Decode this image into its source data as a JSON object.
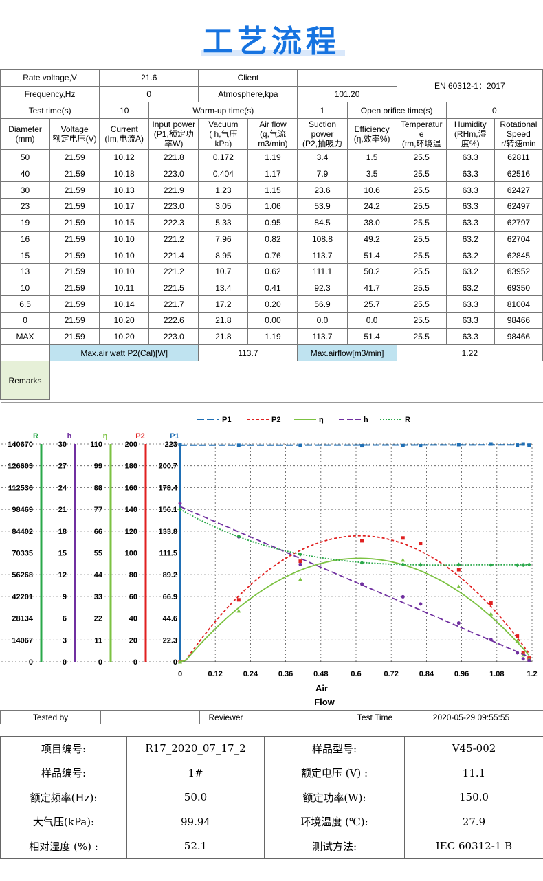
{
  "page_title": "工艺流程",
  "spec": {
    "rate_voltage_label": "Rate voltage,V",
    "rate_voltage": "21.6",
    "client_label": "Client",
    "client": "",
    "frequency_label": "Frequency,Hz",
    "frequency": "0",
    "atmosphere_label": "Atmosphere,kpa",
    "atmosphere": "101.20",
    "standard": "EN 60312-1：2017",
    "test_time_label": "Test time(s)",
    "test_time": "10",
    "warmup_label": "Warm-up time(s)",
    "warmup": "1",
    "open_orifice_label": "Open orifice time(s)",
    "open_orifice": "0",
    "headers": [
      "Diameter\n(mm)",
      "Voltage\n额定电压(V)",
      "Current\n(Im,电流A)",
      "Input power\n(P1,额定功\n率W)",
      "Vacuum\n( h,气压\nkPa)",
      "Air flow\n(q,气流\nm3/min)",
      "Suction\npower\n(P2,抽吸力",
      "Efficiency\n(η,效率%)",
      "Temperatur\ne\n(tm,环境温",
      "Humidity\n(RHm,湿\n度%)",
      "Rotational\nSpeed\nr/转速min"
    ],
    "rows": [
      [
        "50",
        "21.59",
        "10.12",
        "221.8",
        "0.172",
        "1.19",
        "3.4",
        "1.5",
        "25.5",
        "63.3",
        "62811"
      ],
      [
        "40",
        "21.59",
        "10.18",
        "223.0",
        "0.404",
        "1.17",
        "7.9",
        "3.5",
        "25.5",
        "63.3",
        "62516"
      ],
      [
        "30",
        "21.59",
        "10.13",
        "221.9",
        "1.23",
        "1.15",
        "23.6",
        "10.6",
        "25.5",
        "63.3",
        "62427"
      ],
      [
        "23",
        "21.59",
        "10.17",
        "223.0",
        "3.05",
        "1.06",
        "53.9",
        "24.2",
        "25.5",
        "63.3",
        "62497"
      ],
      [
        "19",
        "21.59",
        "10.15",
        "222.3",
        "5.33",
        "0.95",
        "84.5",
        "38.0",
        "25.5",
        "63.3",
        "62797"
      ],
      [
        "16",
        "21.59",
        "10.10",
        "221.2",
        "7.96",
        "0.82",
        "108.8",
        "49.2",
        "25.5",
        "63.2",
        "62704"
      ],
      [
        "15",
        "21.59",
        "10.10",
        "221.4",
        "8.95",
        "0.76",
        "113.7",
        "51.4",
        "25.5",
        "63.2",
        "62845"
      ],
      [
        "13",
        "21.59",
        "10.10",
        "221.2",
        "10.7",
        "0.62",
        "111.1",
        "50.2",
        "25.5",
        "63.2",
        "63952"
      ],
      [
        "10",
        "21.59",
        "10.11",
        "221.5",
        "13.4",
        "0.41",
        "92.3",
        "41.7",
        "25.5",
        "63.2",
        "69350"
      ],
      [
        "6.5",
        "21.59",
        "10.14",
        "221.7",
        "17.2",
        "0.20",
        "56.9",
        "25.7",
        "25.5",
        "63.3",
        "81004"
      ],
      [
        "0",
        "21.59",
        "10.20",
        "222.6",
        "21.8",
        "0.00",
        "0.0",
        "0.0",
        "25.5",
        "63.3",
        "98466"
      ],
      [
        "MAX",
        "21.59",
        "10.20",
        "223.0",
        "21.8",
        "1.19",
        "113.7",
        "51.4",
        "25.5",
        "63.3",
        "98466"
      ]
    ],
    "max_air_watt_label": "Max.air watt P2(Cal)[W]",
    "max_air_watt": "113.7",
    "max_airflow_label": "Max.airflow[m3/min]",
    "max_airflow": "1.22",
    "remarks_label": "Remarks"
  },
  "chart_data": {
    "type": "scatter",
    "xlabel_line1": "Air",
    "xlabel_line2": "Flow",
    "x_ticks": [
      "0",
      "0.12",
      "0.24",
      "0.36",
      "0.48",
      "0.6",
      "0.72",
      "0.84",
      "0.96",
      "1.08",
      "1.2"
    ],
    "xlim": [
      0,
      1.2
    ],
    "grid": true,
    "legend_position": "top",
    "colors": {
      "P1": "#1f6fb5",
      "P2": "#e02020",
      "eta": "#7cc242",
      "h": "#7030a0",
      "R": "#2aa84a"
    },
    "legend": [
      "P1",
      "P2",
      "η",
      "h",
      "R"
    ],
    "axes": [
      {
        "name": "R",
        "ticks": [
          "0",
          "14067",
          "28134",
          "42201",
          "56268",
          "70335",
          "84402",
          "98469",
          "112536",
          "126603",
          "140670"
        ],
        "ylim": [
          0,
          140670
        ]
      },
      {
        "name": "h",
        "ticks": [
          "0",
          "3",
          "6",
          "9",
          "12",
          "15",
          "18",
          "21",
          "24",
          "27",
          "30"
        ],
        "ylim": [
          0,
          30
        ]
      },
      {
        "name": "η",
        "ticks": [
          "0",
          "11",
          "22",
          "33",
          "44",
          "55",
          "66",
          "77",
          "88",
          "99",
          "110"
        ],
        "ylim": [
          0,
          110
        ]
      },
      {
        "name": "P2",
        "ticks": [
          "0",
          "20",
          "40",
          "60",
          "80",
          "100",
          "120",
          "140",
          "160",
          "180",
          "200"
        ],
        "ylim": [
          0,
          200
        ]
      },
      {
        "name": "P1",
        "ticks": [
          "0",
          "22.3",
          "44.6",
          "66.9",
          "89.2",
          "111.5",
          "133.8",
          "156.1",
          "178.4",
          "200.7",
          "223"
        ],
        "ylim": [
          0,
          223
        ]
      }
    ],
    "series": [
      {
        "name": "P1",
        "axis": "P1",
        "x": [
          1.19,
          1.17,
          1.15,
          1.06,
          0.95,
          0.82,
          0.76,
          0.62,
          0.41,
          0.2,
          0.0
        ],
        "y": [
          221.8,
          223.0,
          221.9,
          223.0,
          222.3,
          221.2,
          221.4,
          221.2,
          221.5,
          221.7,
          222.6
        ]
      },
      {
        "name": "P2",
        "axis": "P2",
        "x": [
          1.19,
          1.17,
          1.15,
          1.06,
          0.95,
          0.82,
          0.76,
          0.62,
          0.41,
          0.2,
          0.0
        ],
        "y": [
          3.4,
          7.9,
          23.6,
          53.9,
          84.5,
          108.8,
          113.7,
          111.1,
          92.3,
          56.9,
          0.0
        ]
      },
      {
        "name": "η",
        "axis": "η",
        "x": [
          1.19,
          1.17,
          1.15,
          1.06,
          0.95,
          0.82,
          0.76,
          0.62,
          0.41,
          0.2,
          0.0
        ],
        "y": [
          1.5,
          3.5,
          10.6,
          24.2,
          38.0,
          49.2,
          51.4,
          50.2,
          41.7,
          25.7,
          0.0
        ]
      },
      {
        "name": "h",
        "axis": "h",
        "x": [
          1.19,
          1.17,
          1.15,
          1.06,
          0.95,
          0.82,
          0.76,
          0.62,
          0.41,
          0.2,
          0.0
        ],
        "y": [
          0.172,
          0.404,
          1.23,
          3.05,
          5.33,
          7.96,
          8.95,
          10.7,
          13.4,
          17.2,
          21.8
        ]
      },
      {
        "name": "R",
        "axis": "R",
        "x": [
          1.19,
          1.17,
          1.15,
          1.06,
          0.95,
          0.82,
          0.76,
          0.62,
          0.41,
          0.2,
          0.0
        ],
        "y": [
          62811,
          62516,
          62427,
          62497,
          62797,
          62704,
          62845,
          63952,
          69350,
          81004,
          98466
        ]
      }
    ]
  },
  "footer": {
    "tested_by_label": "Tested by",
    "tested_by": "",
    "reviewer_label": "Reviewer",
    "reviewer": "",
    "test_time_label": "Test Time",
    "test_time": "2020-05-29 09:55:55"
  },
  "info": {
    "rows": [
      [
        "项目编号:",
        "R17_2020_07_17_2",
        "样品型号:",
        "V45-002"
      ],
      [
        "样品编号:",
        "1#",
        "额定电压 (V) :",
        "11.1"
      ],
      [
        "额定频率(Hz):",
        "50.0",
        "额定功率(W):",
        "150.0"
      ],
      [
        "大气压(kPa):",
        "99.94",
        "环境温度 (℃):",
        "27.9"
      ],
      [
        "相对湿度 (%) :",
        "52.1",
        "测试方法:",
        "IEC 60312-1 B"
      ]
    ]
  }
}
